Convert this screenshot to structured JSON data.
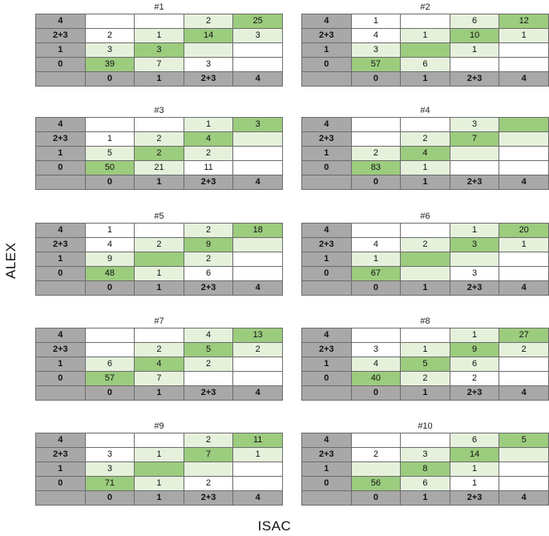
{
  "chart_data": {
    "type": "table",
    "ylabel": "ALEX",
    "xlabel": "ISAC",
    "row_categories": [
      "4",
      "2+3",
      "1",
      "0"
    ],
    "col_categories": [
      "0",
      "1",
      "2+3",
      "4"
    ],
    "shading_legend": {
      "white": "#ffffff",
      "light_green": "#e6f1dc",
      "green": "#9ccc7e",
      "header_gray": "#a8a8a8"
    },
    "shading_rule": "green on exact agreement diagonal, light green on adjacent categories, white elsewhere",
    "panels": [
      {
        "title": "#1",
        "rows": [
          [
            "",
            "",
            "2",
            "25"
          ],
          [
            "2",
            "1",
            "14",
            "3"
          ],
          [
            "3",
            "3",
            "",
            ""
          ],
          [
            "39",
            "7",
            "3",
            ""
          ]
        ]
      },
      {
        "title": "#2",
        "rows": [
          [
            "1",
            "",
            "6",
            "12"
          ],
          [
            "4",
            "1",
            "10",
            "1"
          ],
          [
            "3",
            "",
            "1",
            ""
          ],
          [
            "57",
            "6",
            "",
            ""
          ]
        ]
      },
      {
        "title": "#3",
        "rows": [
          [
            "",
            "",
            "1",
            "3"
          ],
          [
            "1",
            "2",
            "4",
            ""
          ],
          [
            "5",
            "2",
            "2",
            ""
          ],
          [
            "50",
            "21",
            "11",
            ""
          ]
        ]
      },
      {
        "title": "#4",
        "rows": [
          [
            "",
            "",
            "3",
            ""
          ],
          [
            "",
            "2",
            "7",
            ""
          ],
          [
            "2",
            "4",
            "",
            ""
          ],
          [
            "83",
            "1",
            "",
            ""
          ]
        ]
      },
      {
        "title": "#5",
        "rows": [
          [
            "1",
            "",
            "2",
            "18"
          ],
          [
            "4",
            "2",
            "9",
            ""
          ],
          [
            "9",
            "",
            "2",
            ""
          ],
          [
            "48",
            "1",
            "6",
            ""
          ]
        ]
      },
      {
        "title": "#6",
        "rows": [
          [
            "",
            "",
            "1",
            "20"
          ],
          [
            "4",
            "2",
            "3",
            "1"
          ],
          [
            "1",
            "",
            "",
            ""
          ],
          [
            "67",
            "",
            "3",
            ""
          ]
        ]
      },
      {
        "title": "#7",
        "rows": [
          [
            "",
            "",
            "4",
            "13"
          ],
          [
            "",
            "2",
            "5",
            "2"
          ],
          [
            "6",
            "4",
            "2",
            ""
          ],
          [
            "57",
            "7",
            "",
            ""
          ]
        ]
      },
      {
        "title": "#8",
        "rows": [
          [
            "",
            "",
            "1",
            "27"
          ],
          [
            "3",
            "1",
            "9",
            "2"
          ],
          [
            "4",
            "5",
            "6",
            ""
          ],
          [
            "40",
            "2",
            "2",
            ""
          ]
        ]
      },
      {
        "title": "#9",
        "rows": [
          [
            "",
            "",
            "2",
            "11"
          ],
          [
            "3",
            "1",
            "7",
            "1"
          ],
          [
            "3",
            "",
            "",
            ""
          ],
          [
            "71",
            "1",
            "2",
            ""
          ]
        ]
      },
      {
        "title": "#10",
        "rows": [
          [
            "",
            "",
            "6",
            "5"
          ],
          [
            "2",
            "3",
            "14",
            ""
          ],
          [
            "",
            "8",
            "1",
            ""
          ],
          [
            "56",
            "6",
            "1",
            ""
          ]
        ]
      }
    ]
  }
}
